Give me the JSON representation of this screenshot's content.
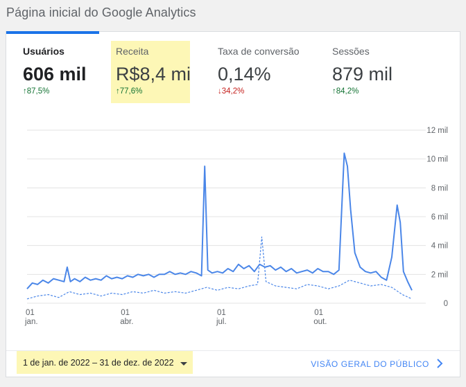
{
  "page": {
    "title": "Página inicial do Google Analytics"
  },
  "metrics": [
    {
      "label": "Usuários",
      "value": "606 mil",
      "delta": "87,5%",
      "direction": "up",
      "active": true
    },
    {
      "label": "Receita",
      "value": "R$8,4 mi",
      "delta": "77,6%",
      "direction": "up",
      "highlighted": true
    },
    {
      "label": "Taxa de conversão",
      "value": "0,14%",
      "delta": "34,2%",
      "direction": "down"
    },
    {
      "label": "Sessões",
      "value": "879 mil",
      "delta": "84,2%",
      "direction": "up"
    }
  ],
  "arrows": {
    "up": "↑",
    "down": "↓"
  },
  "colors": {
    "accent": "#1a73e8",
    "line": "#4a86e8",
    "up": "#137333",
    "down": "#c5221f",
    "highlight": "#fdf7b6"
  },
  "chart_data": {
    "type": "line",
    "y_ticks": [
      "0",
      "2 mil",
      "4 mil",
      "6 mil",
      "8 mil",
      "10 mil",
      "12 mil"
    ],
    "ylim": [
      0,
      12000
    ],
    "x_ticks": [
      {
        "day": "01",
        "month": "jan.",
        "doy": 0
      },
      {
        "day": "01",
        "month": "abr.",
        "doy": 90
      },
      {
        "day": "01",
        "month": "jul.",
        "doy": 181
      },
      {
        "day": "01",
        "month": "out.",
        "doy": 273
      }
    ],
    "xlim": [
      0,
      364
    ],
    "series": [
      {
        "style": "solid",
        "points": [
          [
            0,
            1000
          ],
          [
            5,
            1400
          ],
          [
            10,
            1300
          ],
          [
            15,
            1600
          ],
          [
            20,
            1400
          ],
          [
            25,
            1700
          ],
          [
            30,
            1600
          ],
          [
            35,
            1500
          ],
          [
            38,
            2500
          ],
          [
            41,
            1500
          ],
          [
            45,
            1700
          ],
          [
            50,
            1500
          ],
          [
            55,
            1800
          ],
          [
            60,
            1600
          ],
          [
            65,
            1700
          ],
          [
            70,
            1600
          ],
          [
            75,
            1900
          ],
          [
            80,
            1700
          ],
          [
            85,
            1800
          ],
          [
            90,
            1700
          ],
          [
            95,
            1900
          ],
          [
            100,
            1800
          ],
          [
            105,
            2000
          ],
          [
            110,
            1900
          ],
          [
            115,
            2000
          ],
          [
            120,
            1800
          ],
          [
            125,
            2000
          ],
          [
            130,
            2000
          ],
          [
            135,
            2200
          ],
          [
            140,
            2000
          ],
          [
            145,
            2100
          ],
          [
            150,
            2000
          ],
          [
            155,
            2200
          ],
          [
            160,
            2100
          ],
          [
            165,
            1900
          ],
          [
            168,
            9500
          ],
          [
            171,
            2300
          ],
          [
            175,
            2100
          ],
          [
            180,
            2200
          ],
          [
            185,
            2100
          ],
          [
            190,
            2400
          ],
          [
            195,
            2200
          ],
          [
            200,
            2700
          ],
          [
            205,
            2400
          ],
          [
            210,
            2600
          ],
          [
            215,
            2200
          ],
          [
            220,
            2700
          ],
          [
            225,
            2500
          ],
          [
            230,
            2600
          ],
          [
            235,
            2300
          ],
          [
            240,
            2500
          ],
          [
            245,
            2200
          ],
          [
            250,
            2400
          ],
          [
            255,
            2100
          ],
          [
            260,
            2200
          ],
          [
            265,
            2300
          ],
          [
            270,
            2100
          ],
          [
            275,
            2400
          ],
          [
            280,
            2200
          ],
          [
            285,
            2200
          ],
          [
            290,
            2000
          ],
          [
            295,
            2300
          ],
          [
            300,
            10400
          ],
          [
            303,
            9500
          ],
          [
            306,
            6500
          ],
          [
            310,
            3500
          ],
          [
            315,
            2500
          ],
          [
            320,
            2200
          ],
          [
            325,
            2100
          ],
          [
            330,
            2200
          ],
          [
            335,
            1800
          ],
          [
            340,
            1600
          ],
          [
            345,
            3200
          ],
          [
            350,
            6800
          ],
          [
            353,
            5600
          ],
          [
            356,
            2200
          ],
          [
            360,
            1500
          ],
          [
            364,
            900
          ]
        ]
      },
      {
        "style": "dashed",
        "points": [
          [
            0,
            300
          ],
          [
            10,
            500
          ],
          [
            20,
            600
          ],
          [
            30,
            400
          ],
          [
            40,
            800
          ],
          [
            50,
            600
          ],
          [
            60,
            700
          ],
          [
            70,
            500
          ],
          [
            80,
            700
          ],
          [
            90,
            600
          ],
          [
            100,
            800
          ],
          [
            110,
            700
          ],
          [
            120,
            900
          ],
          [
            130,
            700
          ],
          [
            140,
            800
          ],
          [
            150,
            700
          ],
          [
            160,
            900
          ],
          [
            170,
            1100
          ],
          [
            180,
            900
          ],
          [
            190,
            1100
          ],
          [
            200,
            1000
          ],
          [
            210,
            1200
          ],
          [
            218,
            1300
          ],
          [
            222,
            4600
          ],
          [
            226,
            1500
          ],
          [
            235,
            1200
          ],
          [
            245,
            1100
          ],
          [
            255,
            1000
          ],
          [
            265,
            1300
          ],
          [
            275,
            1200
          ],
          [
            285,
            1000
          ],
          [
            295,
            1200
          ],
          [
            305,
            1600
          ],
          [
            315,
            1400
          ],
          [
            325,
            1200
          ],
          [
            335,
            1300
          ],
          [
            345,
            1100
          ],
          [
            355,
            600
          ],
          [
            364,
            300
          ]
        ]
      }
    ]
  },
  "footer": {
    "date_range": "1 de jan. de 2022 – 31 de dez. de 2022",
    "overview_link": "VISÃO GERAL DO PÚBLICO"
  }
}
